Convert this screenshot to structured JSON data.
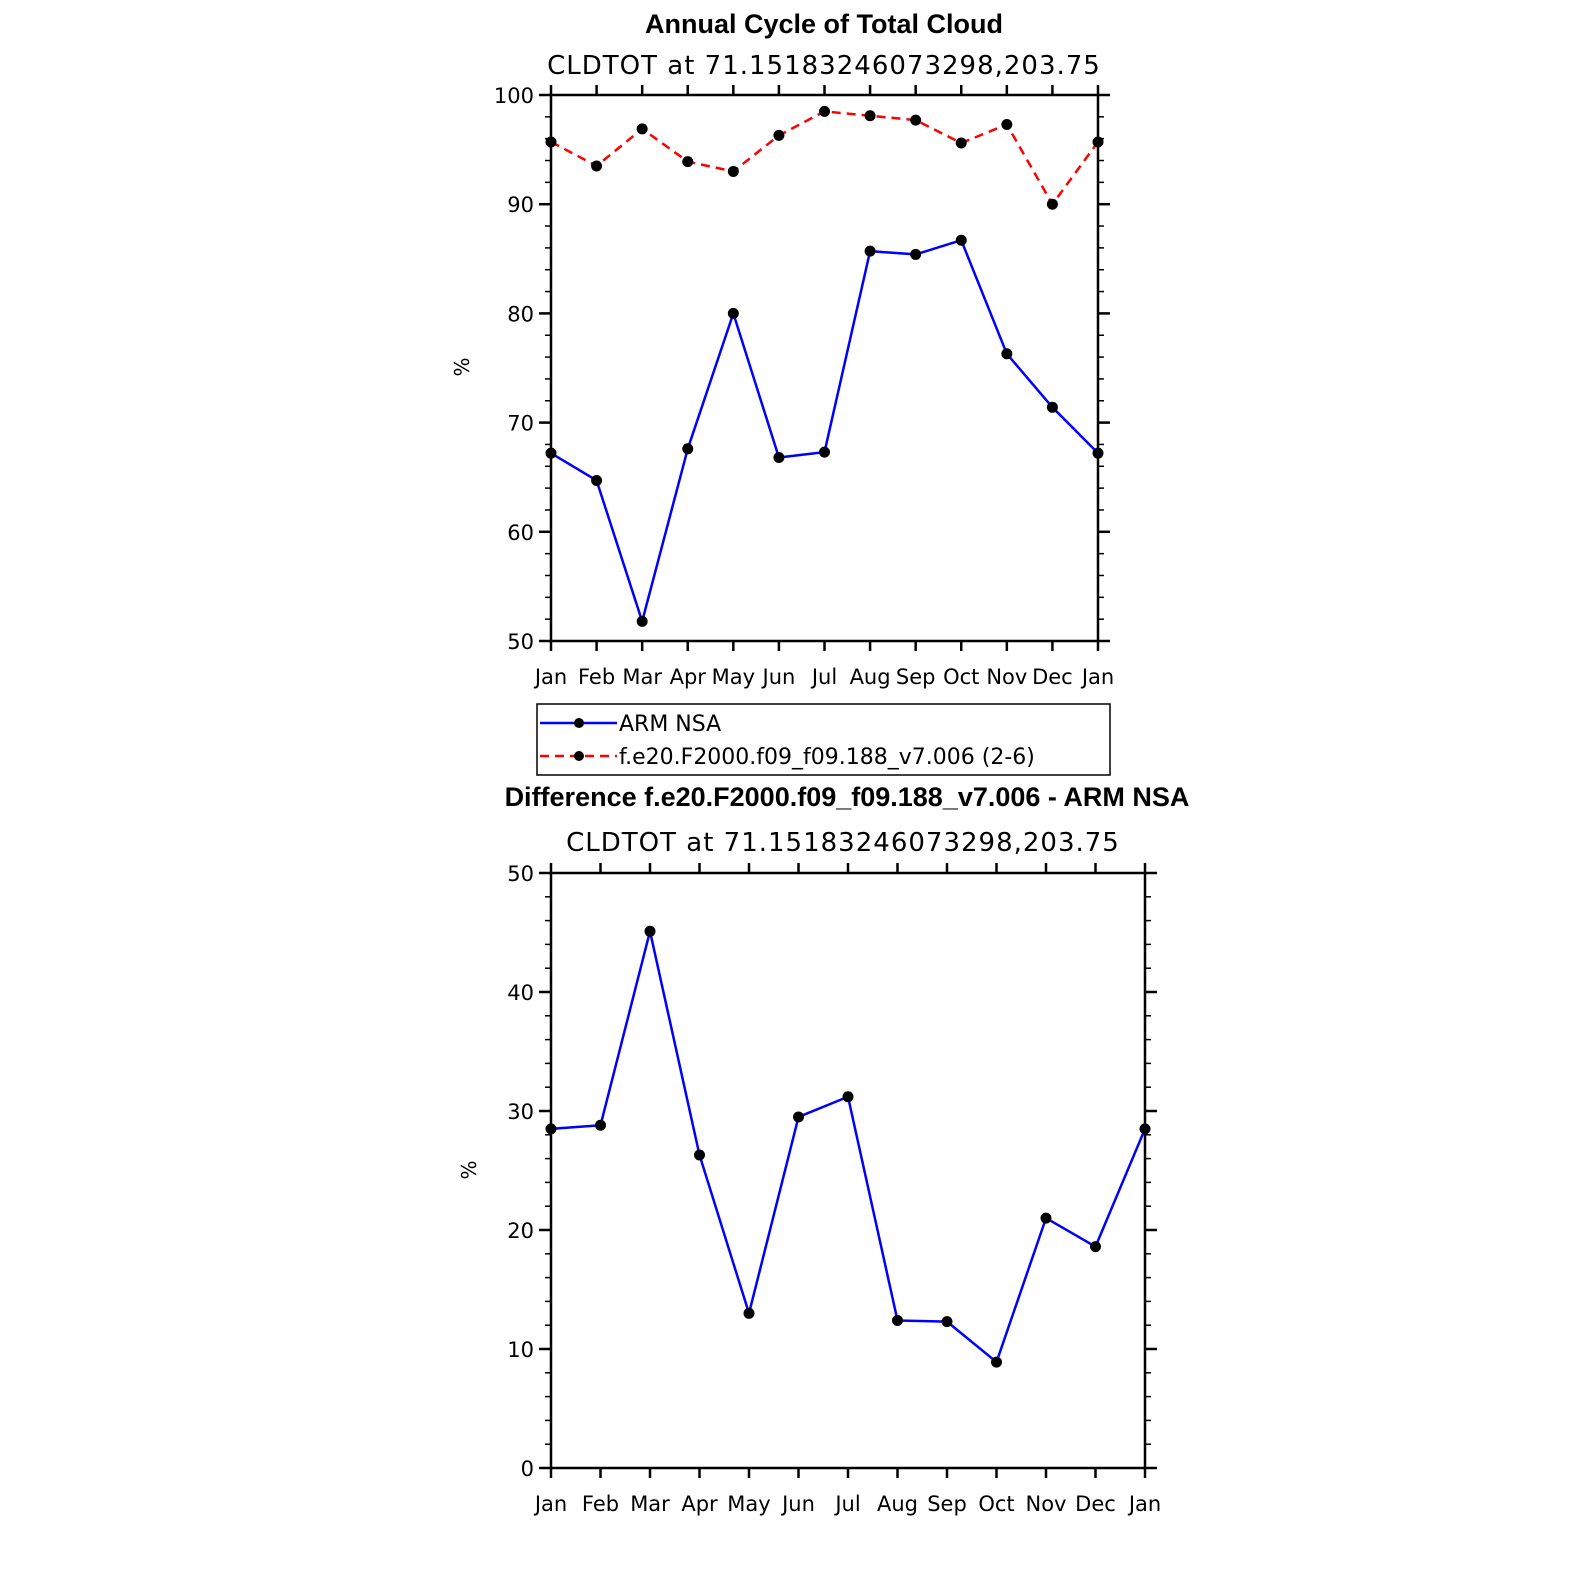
{
  "chart_data": [
    {
      "type": "line",
      "title": "Annual Cycle of Total Cloud",
      "subtitle": "CLDTOT at 71.15183246073298,203.75",
      "xlabel": "",
      "ylabel": "%",
      "categories": [
        "Jan",
        "Feb",
        "Mar",
        "Apr",
        "May",
        "Jun",
        "Jul",
        "Aug",
        "Sep",
        "Oct",
        "Nov",
        "Dec",
        "Jan"
      ],
      "ylim": [
        50,
        100
      ],
      "yticks": [
        50,
        60,
        70,
        80,
        90,
        100
      ],
      "grid": false,
      "legend_position": "bottom",
      "series": [
        {
          "name": "ARM NSA",
          "color": "#0000ff",
          "dash": "solid",
          "values": [
            67.2,
            64.7,
            51.8,
            67.6,
            80.0,
            66.8,
            67.3,
            85.7,
            85.4,
            86.7,
            76.3,
            71.4,
            67.2
          ]
        },
        {
          "name": "f.e20.F2000.f09_f09.188_v7.006 (2-6)",
          "color": "#ff0000",
          "dash": "dashed",
          "values": [
            95.7,
            93.5,
            96.9,
            93.9,
            93.0,
            96.3,
            98.5,
            98.1,
            97.7,
            95.6,
            97.3,
            90.0,
            95.7
          ]
        }
      ]
    },
    {
      "type": "line",
      "title": "Difference f.e20.F2000.f09_f09.188_v7.006 - ARM NSA",
      "subtitle": "CLDTOT at 71.15183246073298,203.75",
      "xlabel": "",
      "ylabel": "%",
      "categories": [
        "Jan",
        "Feb",
        "Mar",
        "Apr",
        "May",
        "Jun",
        "Jul",
        "Aug",
        "Sep",
        "Oct",
        "Nov",
        "Dec",
        "Jan"
      ],
      "ylim": [
        0,
        50
      ],
      "yticks": [
        0,
        10,
        20,
        30,
        40,
        50
      ],
      "grid": false,
      "series": [
        {
          "color": "#0000ff",
          "dash": "solid",
          "values": [
            28.5,
            28.8,
            45.1,
            26.3,
            13.0,
            29.5,
            31.2,
            12.4,
            12.3,
            8.9,
            21.0,
            18.6,
            28.5
          ]
        }
      ]
    }
  ]
}
